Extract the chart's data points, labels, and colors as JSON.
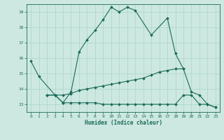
{
  "xlabel": "Humidex (Indice chaleur)",
  "background_color": "#cde8e0",
  "grid_color": "#aad4c8",
  "line_color": "#1a6b5a",
  "xlim": [
    -0.5,
    23.5
  ],
  "ylim": [
    12.5,
    19.5
  ],
  "yticks": [
    13,
    14,
    15,
    16,
    17,
    18,
    19
  ],
  "xticks": [
    0,
    1,
    2,
    3,
    4,
    5,
    6,
    7,
    8,
    9,
    10,
    11,
    12,
    13,
    14,
    15,
    16,
    17,
    18,
    19,
    20,
    21,
    22,
    23
  ],
  "line1_x": [
    0,
    1,
    3,
    4,
    5,
    6,
    7,
    8,
    9,
    10,
    11,
    12,
    13,
    15,
    17,
    18,
    19
  ],
  "line1_y": [
    15.8,
    14.8,
    13.6,
    13.1,
    13.8,
    16.4,
    17.2,
    17.8,
    18.5,
    19.3,
    19.0,
    19.3,
    19.1,
    17.5,
    18.6,
    16.3,
    15.3
  ],
  "line2_x": [
    2,
    3,
    4,
    5,
    6,
    7,
    8,
    9,
    10,
    11,
    12,
    13,
    14,
    15,
    16,
    17,
    18,
    19,
    20,
    21,
    22,
    23
  ],
  "line2_y": [
    13.6,
    13.6,
    13.1,
    13.1,
    13.1,
    13.1,
    13.1,
    13.0,
    13.0,
    13.0,
    13.0,
    13.0,
    13.0,
    13.0,
    13.0,
    13.0,
    13.0,
    13.6,
    13.6,
    13.0,
    13.0,
    12.8
  ],
  "line3_x": [
    2,
    3,
    4,
    5,
    6,
    7,
    8,
    9,
    10,
    11,
    12,
    13,
    14,
    15,
    16,
    17,
    18,
    19,
    20,
    21,
    22,
    23
  ],
  "line3_y": [
    13.6,
    13.6,
    13.6,
    13.7,
    13.9,
    14.0,
    14.1,
    14.2,
    14.3,
    14.4,
    14.5,
    14.6,
    14.7,
    14.9,
    15.1,
    15.2,
    15.3,
    15.3,
    13.8,
    13.6,
    13.0,
    12.8
  ]
}
